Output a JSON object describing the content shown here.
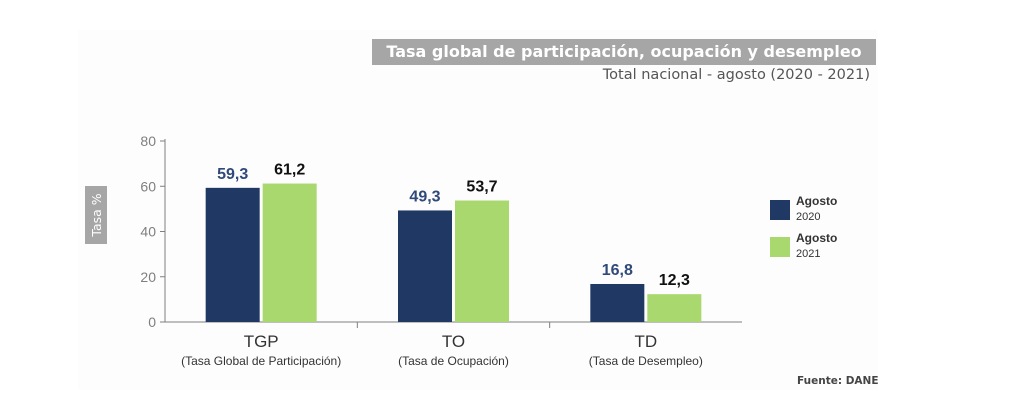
{
  "chart_data": {
    "type": "bar",
    "title": "Tasa global de participación, ocupación y desempleo",
    "subtitle": "Total nacional - agosto (2020 - 2021)",
    "ylabel": "Tasa %",
    "ylim": [
      0,
      80
    ],
    "yticks": [
      "0",
      "20",
      "40",
      "60",
      "80"
    ],
    "categories": [
      {
        "code": "TGP",
        "name": "(Tasa Global de Participación)"
      },
      {
        "code": "TO",
        "name": "(Tasa de Ocupación)"
      },
      {
        "code": "TD",
        "name": "(Tasa de Desempleo)"
      }
    ],
    "series": [
      {
        "name": "Agosto",
        "year": "2020",
        "color": "#1f3864",
        "values": [
          59.3,
          49.3,
          16.8
        ],
        "labels": [
          "59,3",
          "49,3",
          "16,8"
        ]
      },
      {
        "name": "Agosto",
        "year": "2021",
        "color": "#a9d96e",
        "values": [
          61.2,
          53.7,
          12.3
        ],
        "labels": [
          "61,2",
          "53,7",
          "12,3"
        ]
      }
    ],
    "legend_position": "right",
    "grid": false,
    "source": "Fuente: DANE"
  }
}
